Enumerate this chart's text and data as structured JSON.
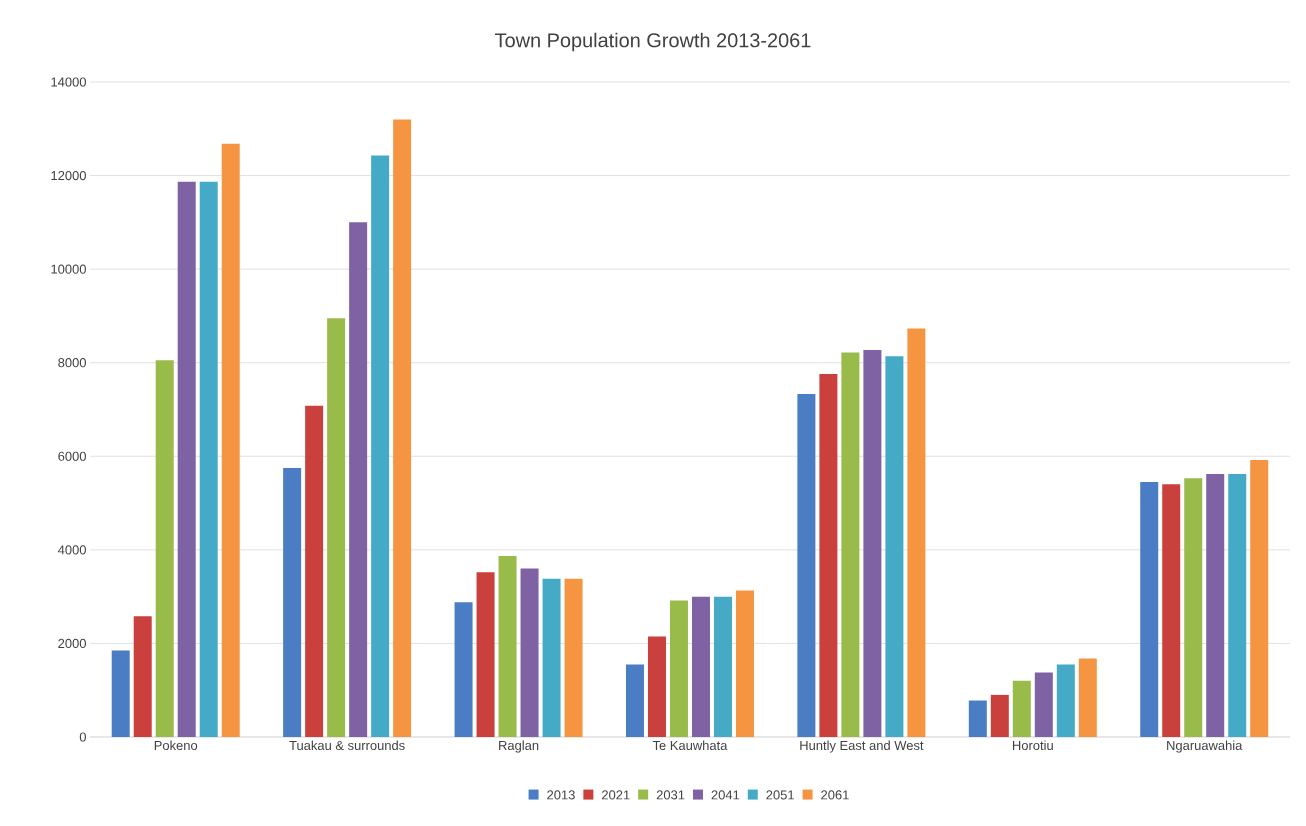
{
  "chart_data": {
    "type": "bar",
    "title": "Town Population Growth  2013-2061",
    "categories": [
      "Pokeno",
      "Tuakau & surrounds",
      "Raglan",
      "Te Kauwhata",
      "Huntly East and West",
      "Horotiu",
      "Ngaruawahia"
    ],
    "series": [
      {
        "name": "2013",
        "color": "#4a7dc4",
        "values": [
          1850,
          5750,
          2880,
          1550,
          7330,
          780,
          5450
        ]
      },
      {
        "name": "2021",
        "color": "#c9403c",
        "values": [
          2580,
          7080,
          3520,
          2150,
          7760,
          900,
          5400
        ]
      },
      {
        "name": "2031",
        "color": "#98bb4a",
        "values": [
          8050,
          8950,
          3870,
          2920,
          8220,
          1200,
          5530
        ]
      },
      {
        "name": "2041",
        "color": "#7e62a4",
        "values": [
          11870,
          11000,
          3600,
          3000,
          8270,
          1380,
          5620
        ]
      },
      {
        "name": "2051",
        "color": "#45aac6",
        "values": [
          11870,
          12430,
          3380,
          3000,
          8140,
          1550,
          5620
        ]
      },
      {
        "name": "2061",
        "color": "#f59541",
        "values": [
          12680,
          13200,
          3380,
          3130,
          8730,
          1680,
          5920
        ]
      }
    ],
    "ylim": [
      0,
      14000
    ],
    "yticks": [
      0,
      2000,
      4000,
      6000,
      8000,
      10000,
      12000,
      14000
    ],
    "grid": "y",
    "legend": "bottom"
  }
}
